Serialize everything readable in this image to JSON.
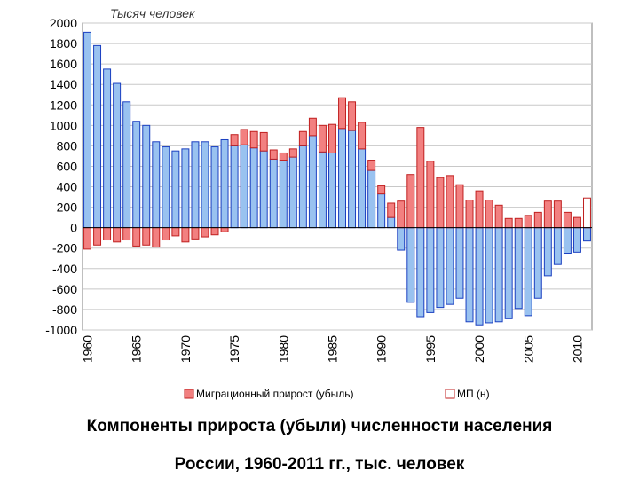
{
  "chart_data": {
    "type": "bar",
    "stacked": true,
    "unit_label": "Тысяч человек",
    "y_range": [
      -1000,
      2000
    ],
    "y_ticks": [
      2000,
      1800,
      1600,
      1400,
      1200,
      1000,
      800,
      600,
      400,
      200,
      0,
      -200,
      -400,
      -600,
      -800,
      -1000
    ],
    "x_tick_labels": [
      "1960",
      "1965",
      "1970",
      "1975",
      "1980",
      "1985",
      "1990",
      "1995",
      "2000",
      "2005",
      "2010"
    ],
    "grid": true,
    "legend_position": "bottom",
    "years": [
      1960,
      1961,
      1962,
      1963,
      1964,
      1965,
      1966,
      1967,
      1968,
      1969,
      1970,
      1971,
      1972,
      1973,
      1974,
      1975,
      1976,
      1977,
      1978,
      1979,
      1980,
      1981,
      1982,
      1983,
      1984,
      1985,
      1986,
      1987,
      1988,
      1989,
      1990,
      1991,
      1992,
      1993,
      1994,
      1995,
      1996,
      1997,
      1998,
      1999,
      2000,
      2001,
      2002,
      2003,
      2004,
      2005,
      2006,
      2007,
      2008,
      2009,
      2010,
      2011
    ],
    "series": [
      {
        "name": "",
        "color": "#99c2f0",
        "stroke": "#1a3fc0",
        "values": [
          1910,
          1780,
          1550,
          1410,
          1230,
          1040,
          1000,
          840,
          790,
          750,
          770,
          840,
          840,
          790,
          860,
          800,
          810,
          780,
          750,
          670,
          660,
          690,
          800,
          900,
          740,
          730,
          970,
          950,
          770,
          560,
          330,
          100,
          -220,
          -730,
          -870,
          -830,
          -780,
          -750,
          -690,
          -920,
          -950,
          -930,
          -920,
          -890,
          -790,
          -860,
          -690,
          -470,
          -360,
          -250,
          -240,
          -130
        ]
      },
      {
        "name": "Миграционный прирост (убыль)",
        "color": "#f28080",
        "stroke": "#c02020",
        "values": [
          -210,
          -170,
          -120,
          -140,
          -120,
          -180,
          -170,
          -190,
          -120,
          -80,
          -140,
          -110,
          -90,
          -70,
          -40,
          110,
          150,
          160,
          180,
          90,
          70,
          80,
          140,
          170,
          260,
          280,
          300,
          280,
          260,
          100,
          80,
          140,
          260,
          520,
          980,
          650,
          490,
          510,
          420,
          270,
          360,
          270,
          220,
          90,
          90,
          120,
          150,
          260,
          260,
          150,
          100,
          0
        ]
      },
      {
        "name": "МП (н)",
        "color": "#ffffff",
        "stroke": "#c02020",
        "values": [
          0,
          0,
          0,
          0,
          0,
          0,
          0,
          0,
          0,
          0,
          0,
          0,
          0,
          0,
          0,
          0,
          0,
          0,
          0,
          0,
          0,
          0,
          0,
          0,
          0,
          0,
          0,
          0,
          0,
          0,
          0,
          0,
          0,
          0,
          0,
          0,
          0,
          0,
          0,
          0,
          0,
          0,
          0,
          0,
          0,
          0,
          0,
          0,
          0,
          0,
          0,
          290
        ]
      }
    ]
  },
  "caption": {
    "line1": "Компоненты прироста (убыли) численности населения",
    "line2": "России, 1960-2011 гг., тыс. человек"
  }
}
